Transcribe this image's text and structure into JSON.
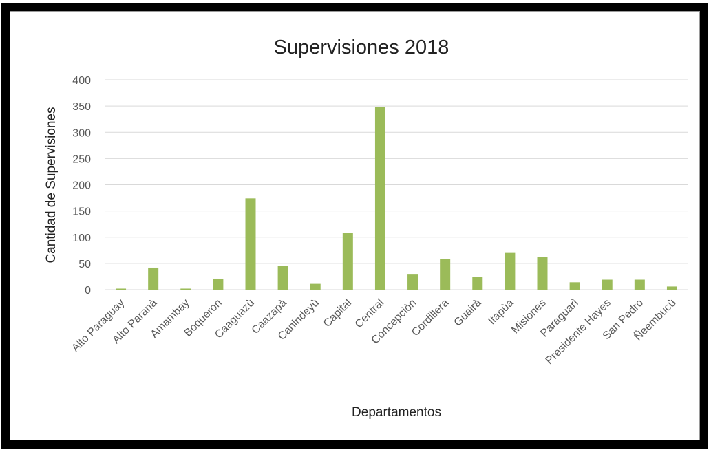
{
  "chart_data": {
    "type": "bar",
    "title": "Supervisiones 2018",
    "xlabel": "Departamentos",
    "ylabel": "Cantidad de Supervisiones",
    "ylim": [
      0,
      400
    ],
    "yticks": [
      0,
      50,
      100,
      150,
      200,
      250,
      300,
      350,
      400
    ],
    "grid": true,
    "legend": "none",
    "categories": [
      "Alto Paraguay",
      "Alto Paranà",
      "Amambay",
      "Boqueron",
      "Caaguazù",
      "Caazapà",
      "Canindeyù",
      "Capital",
      "Central",
      "Concepciòn",
      "Cordillera",
      "Guairà",
      "Itapùa",
      "Misiones",
      "Paraguarì",
      "Presidente Hayes",
      "San Pedro",
      "Ñeembucù"
    ],
    "values": [
      2,
      42,
      2,
      21,
      174,
      45,
      11,
      108,
      348,
      30,
      58,
      24,
      70,
      62,
      14,
      19,
      19,
      6
    ],
    "colors": {
      "bar": "#9bbb59",
      "grid": "#d9d9d9",
      "text": "#595959"
    }
  }
}
